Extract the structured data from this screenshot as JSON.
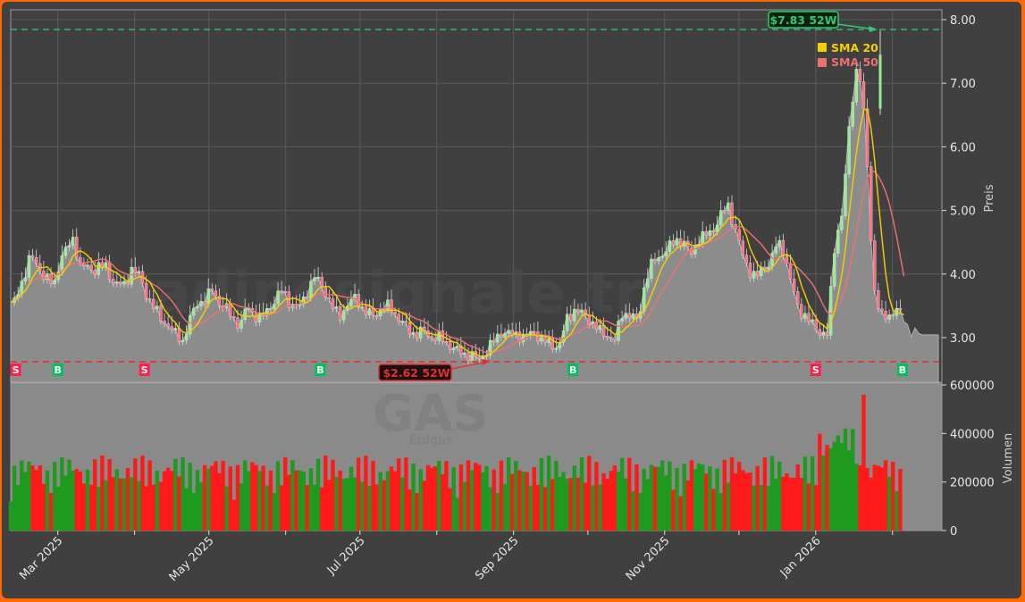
{
  "chart_data": {
    "type": "candlestick",
    "ticker": "GAS",
    "subtitle": "Erdgas",
    "watermark": "tradingsignale.trade",
    "colors": {
      "frame_border": "#ff6a00",
      "background": "#404040",
      "price_area_fill": "#8c8c8c",
      "sma20": "#f5d000",
      "sma50": "#f07070",
      "up_candle": "#90ee90",
      "down_candle": "#ff6b81",
      "volume_up": "#1e9a1e",
      "volume_down": "#ff1a1a",
      "high_line": "#3cb371",
      "low_line": "#e03030",
      "buy_marker": "#00c060",
      "sell_marker": "#ff1f4f"
    },
    "price_axis": {
      "label": "Preis",
      "ticks": [
        "8.00",
        "7.00",
        "6.00",
        "5.00",
        "4.00",
        "3.00"
      ],
      "ylim": [
        2.35,
        8.15
      ]
    },
    "volume_axis": {
      "label": "Volumen",
      "ticks": [
        "600000",
        "400000",
        "200000",
        "0"
      ],
      "ylim": [
        0,
        600000
      ]
    },
    "x_axis": {
      "ticks": [
        "Mar 2025",
        "May 2025",
        "Jul 2025",
        "Sep 2025",
        "Nov 2025",
        "Jan 2026"
      ]
    },
    "legend": [
      {
        "label": "SMA 20",
        "color": "#f5d000"
      },
      {
        "label": "SMA 50",
        "color": "#f07070"
      }
    ],
    "annotations": {
      "high_52w": {
        "value": 7.83,
        "label": "$7.83 52W"
      },
      "low_52w": {
        "value": 2.62,
        "label": "$2.62 52W"
      }
    },
    "signals": [
      {
        "type": "S",
        "date": "2025-02-12"
      },
      {
        "type": "B",
        "date": "2025-03-01"
      },
      {
        "type": "S",
        "date": "2025-04-05"
      },
      {
        "type": "B",
        "date": "2025-06-15"
      },
      {
        "type": "S",
        "date": "2025-07-20"
      },
      {
        "type": "B",
        "date": "2025-09-25"
      },
      {
        "type": "S",
        "date": "2026-01-01"
      },
      {
        "type": "B",
        "date": "2026-02-05"
      }
    ],
    "close_series": [
      {
        "month": "2025-02",
        "values": [
          3.55,
          3.9,
          4.3,
          4.1,
          3.95,
          3.8
        ]
      },
      {
        "month": "2025-03",
        "values": [
          4.3,
          4.4,
          4.55,
          4.15,
          4.1,
          4.05,
          4.15,
          4.1,
          3.9,
          3.85,
          3.8,
          4.1
        ]
      },
      {
        "month": "2025-04",
        "values": [
          4.0,
          3.7,
          3.5,
          3.3,
          3.2,
          3.05,
          2.95,
          3.3,
          3.55,
          3.6
        ]
      },
      {
        "month": "2025-05",
        "values": [
          3.75,
          3.55,
          3.45,
          3.3,
          3.2,
          3.5,
          3.35,
          3.3,
          3.45,
          3.6,
          3.75
        ]
      },
      {
        "month": "2025-06",
        "values": [
          3.55,
          3.45,
          3.7,
          3.95,
          3.8,
          3.5,
          3.35,
          3.5,
          3.65
        ]
      },
      {
        "month": "2025-07",
        "values": [
          3.4,
          3.35,
          3.45,
          3.5,
          3.3,
          3.15,
          3.05,
          3.1,
          3.0
        ]
      },
      {
        "month": "2025-08",
        "values": [
          3.0,
          2.9,
          2.8,
          2.75,
          2.72,
          2.65,
          2.8,
          2.95,
          3.1,
          3.05
        ]
      },
      {
        "month": "2025-09",
        "values": [
          3.05,
          3.0,
          3.1,
          2.95,
          2.9,
          2.85,
          3.3,
          3.45,
          3.35
        ]
      },
      {
        "month": "2025-10",
        "values": [
          3.25,
          3.1,
          3.05,
          2.95,
          3.4,
          3.35,
          3.25,
          3.9,
          4.2,
          4.3
        ]
      },
      {
        "month": "2025-11",
        "values": [
          4.4,
          4.55,
          4.5,
          4.3,
          4.55,
          4.6,
          4.7,
          4.9,
          5.1,
          4.7
        ]
      },
      {
        "month": "2025-12",
        "values": [
          4.3,
          4.05,
          3.95,
          4.1,
          4.2,
          4.5,
          4.35,
          3.85,
          3.45,
          3.35,
          3.2
        ]
      },
      {
        "month": "2026-01",
        "values": [
          3.1,
          3.05,
          4.5,
          5.0,
          6.5,
          7.4,
          6.2,
          3.85,
          3.3,
          3.35
        ]
      },
      {
        "month": "2026-02",
        "values": [
          3.45,
          3.3,
          3.1,
          3.05
        ]
      }
    ],
    "volume_series_note": "daily volumes ~50k-380k, spike ~560k mid-Jan 2026 (red)"
  }
}
